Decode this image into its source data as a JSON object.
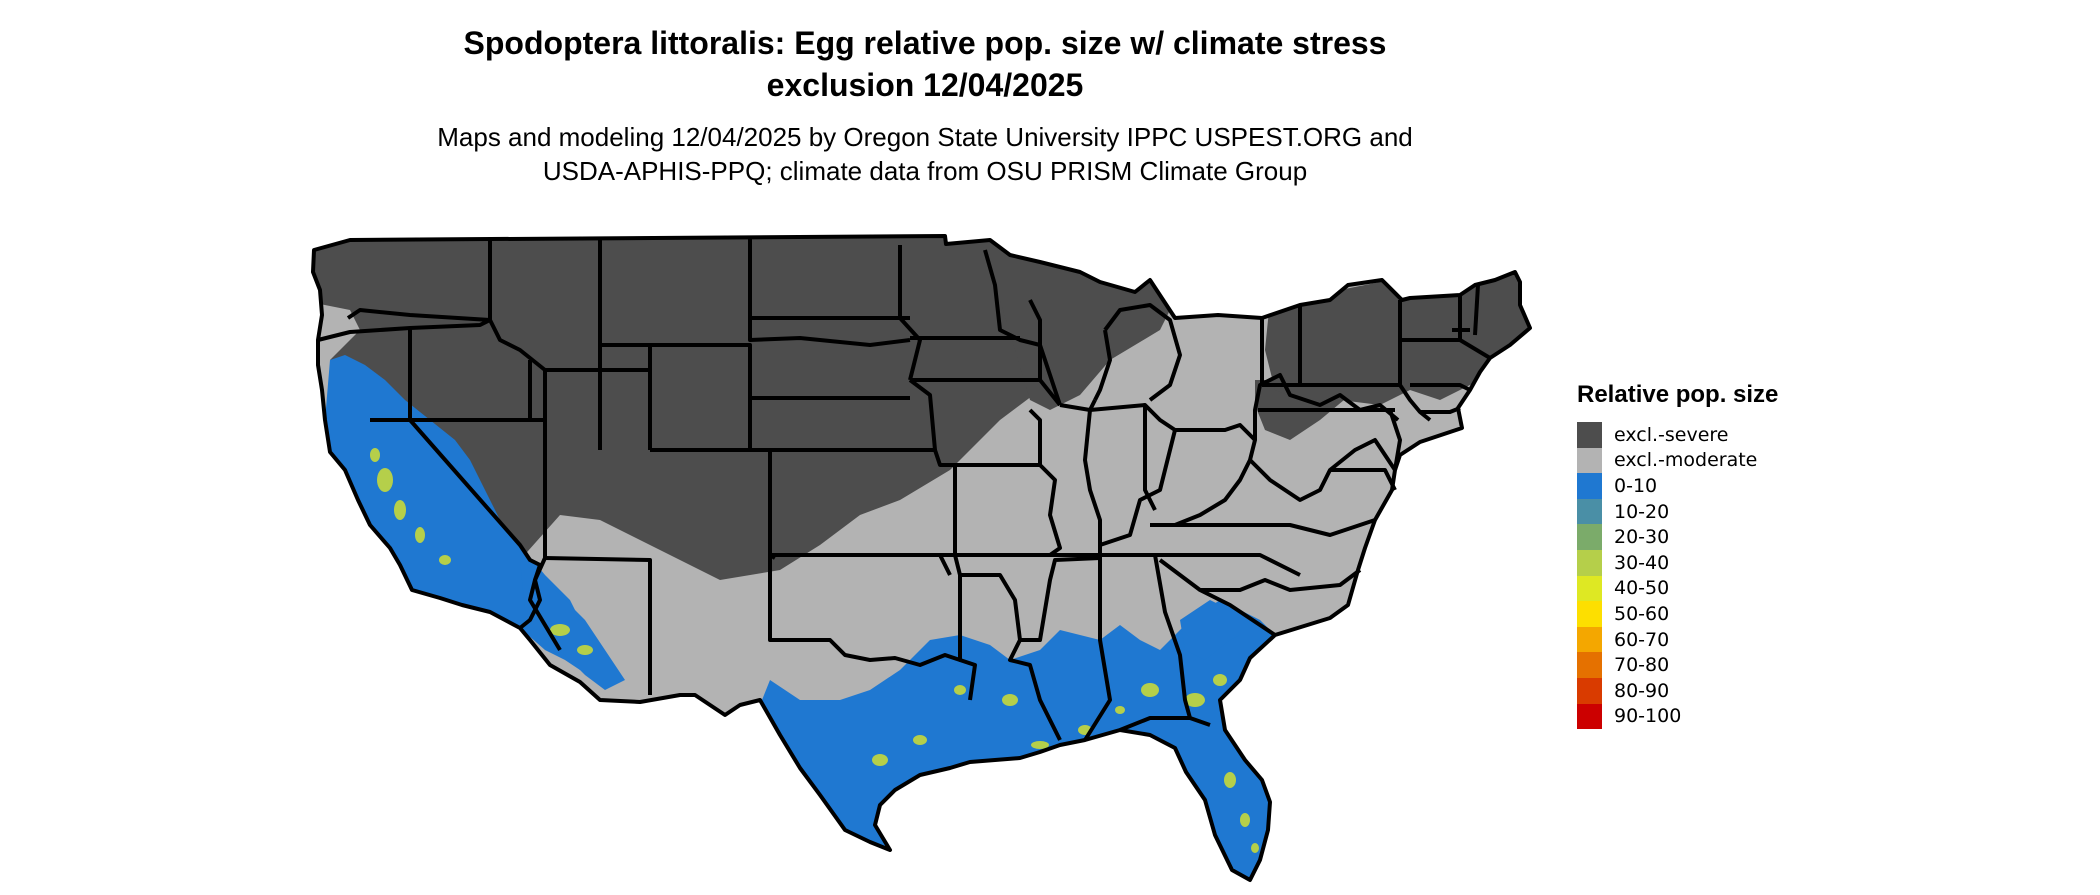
{
  "map": {
    "title_line1": "Spodoptera littoralis: Egg relative pop. size w/ climate stress",
    "title_line2": "exclusion 12/04/2025",
    "subtitle_line1": "Maps and modeling 12/04/2025 by Oregon State University IPPC USPEST.ORG and",
    "subtitle_line2": "USDA-APHIS-PPQ; climate data from OSU PRISM Climate Group",
    "region": "contiguous-united-states",
    "colors": {
      "severe": "#4d4d4d",
      "moderate": "#b3b3b3",
      "blue": "#1f78d1",
      "green": "#b5cf4a",
      "teal": "#3f9fa0",
      "state_border": "#000000"
    }
  },
  "legend": {
    "title": "Relative pop. size",
    "items": [
      {
        "label": "excl.-severe",
        "color": "#4d4d4d"
      },
      {
        "label": "excl.-moderate",
        "color": "#b3b3b3"
      },
      {
        "label": "0-10",
        "color": "#1f78d1"
      },
      {
        "label": "10-20",
        "color": "#4a8fa6"
      },
      {
        "label": "20-30",
        "color": "#7bab6a"
      },
      {
        "label": "30-40",
        "color": "#b5cf4a"
      },
      {
        "label": "40-50",
        "color": "#dee823"
      },
      {
        "label": "50-60",
        "color": "#fddf00"
      },
      {
        "label": "60-70",
        "color": "#f4a700"
      },
      {
        "label": "70-80",
        "color": "#e57100"
      },
      {
        "label": "80-90",
        "color": "#d93b00"
      },
      {
        "label": "90-100",
        "color": "#cc0000"
      }
    ]
  }
}
